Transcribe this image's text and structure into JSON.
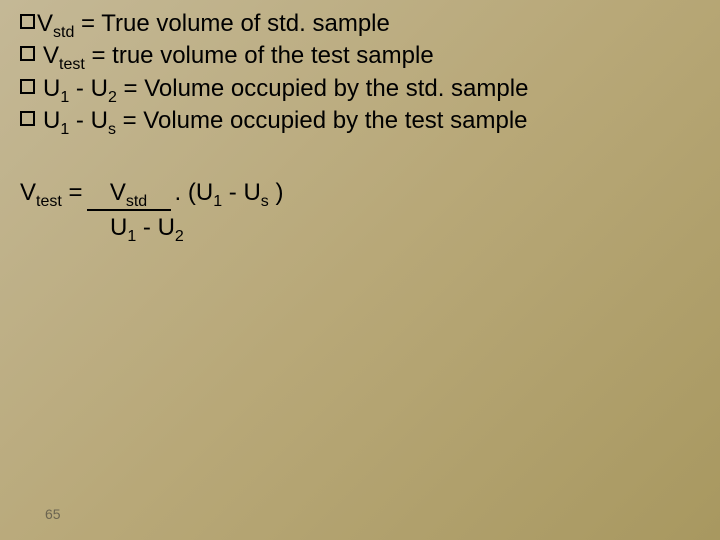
{
  "definitions": [
    {
      "var": "V",
      "sub": "std",
      "text": "= True volume of std. sample",
      "indent": false
    },
    {
      "var": "V",
      "sub": "test",
      "text": "= true volume of the test sample",
      "indent": true
    },
    {
      "var": "U",
      "sub": "1",
      "var2": "U",
      "sub2": "2",
      "sep": " - ",
      "text": "= Volume occupied by the std. sample",
      "indent": true
    },
    {
      "var": "U",
      "sub": "1",
      "var2": "U",
      "sub2": "s",
      "sep": " - ",
      "text": " = Volume occupied by the test sample",
      "indent": true
    }
  ],
  "formula": {
    "lhs_var": "V",
    "lhs_sub": "test",
    "eq": " = ",
    "num_var": "V",
    "num_sub": "std",
    "dot": " . (",
    "p1_var": "U",
    "p1_sub": "1",
    "p_sep": " - U",
    "p2_sub": "s",
    "p_close": " )",
    "den_v1": "U",
    "den_s1": "1",
    "den_sep": " - U",
    "den_s2": "2"
  },
  "page_number": "65",
  "colors": {
    "bg_start": "#c4b896",
    "bg_end": "#a89860",
    "text": "#000000",
    "page_num": "#6b6450"
  },
  "fontsize_main": 24,
  "fontsize_sub": 16,
  "fontsize_pagenum": 14
}
